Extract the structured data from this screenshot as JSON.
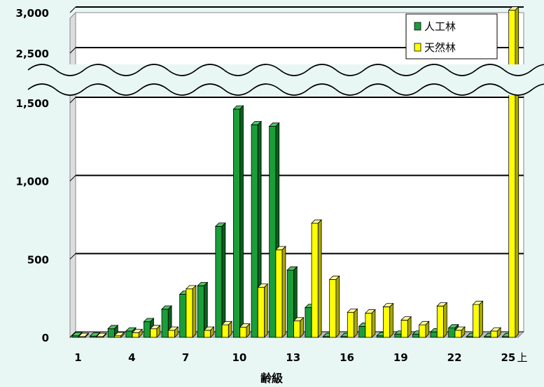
{
  "chart_data": {
    "type": "bar",
    "xlabel": "齢級",
    "ylabel": "",
    "categories": [
      "1",
      "2",
      "3",
      "4",
      "5",
      "6",
      "7",
      "8",
      "9",
      "10",
      "11",
      "12",
      "13",
      "14",
      "15",
      "16",
      "17",
      "18",
      "19",
      "20",
      "21",
      "22",
      "23",
      "24",
      "25上"
    ],
    "x_tick_labels": [
      "1",
      "4",
      "7",
      "10",
      "13",
      "16",
      "19",
      "22",
      "25"
    ],
    "x_suffix_label": "上",
    "y_tick_labels_lower": [
      "0",
      "500",
      "1,000",
      "1,500"
    ],
    "y_tick_labels_upper": [
      "2,500",
      "3,000"
    ],
    "y_axis_break": [
      1500,
      2500
    ],
    "ylim": [
      0,
      3000
    ],
    "grid": true,
    "legend_position": "top-right",
    "series": [
      {
        "name": "人工林",
        "color": "#1a9e3a",
        "values": [
          10,
          8,
          55,
          40,
          100,
          180,
          275,
          330,
          710,
          1460,
          1360,
          1350,
          430,
          190,
          5,
          5,
          70,
          10,
          20,
          20,
          35,
          60,
          0,
          0,
          0
        ]
      },
      {
        "name": "天然林",
        "color": "#ffff00",
        "values": [
          5,
          5,
          10,
          30,
          55,
          45,
          310,
          45,
          80,
          65,
          320,
          560,
          105,
          730,
          370,
          160,
          155,
          195,
          110,
          80,
          200,
          45,
          210,
          40,
          3030
        ]
      }
    ]
  }
}
